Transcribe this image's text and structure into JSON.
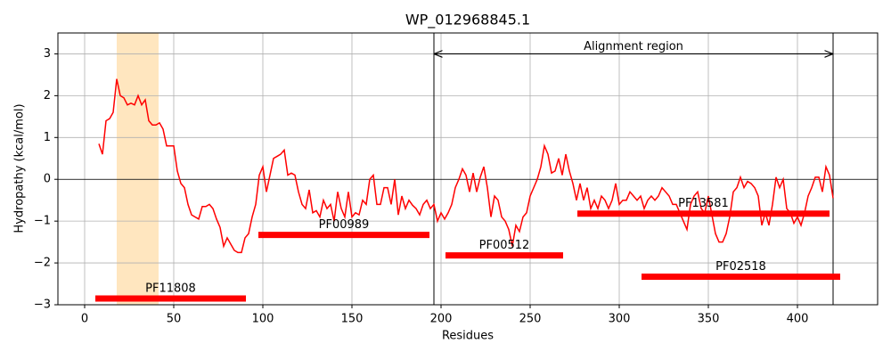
{
  "chart_data": {
    "type": "line",
    "title": "WP_012968845.1",
    "xlabel": "Residues",
    "ylabel": "Hydropathy (kcal/mol)",
    "x": [
      8,
      10,
      12,
      14,
      16,
      18,
      20,
      22,
      24,
      26,
      28,
      30,
      32,
      34,
      36,
      38,
      40,
      42,
      44,
      46,
      48,
      50,
      52,
      54,
      56,
      58,
      60,
      62,
      64,
      66,
      68,
      70,
      72,
      74,
      76,
      78,
      80,
      82,
      84,
      86,
      88,
      90,
      92,
      94,
      96,
      98,
      100,
      102,
      104,
      106,
      108,
      110,
      112,
      114,
      116,
      118,
      120,
      122,
      124,
      126,
      128,
      130,
      132,
      134,
      136,
      138,
      140,
      142,
      144,
      146,
      148,
      150,
      152,
      154,
      156,
      158,
      160,
      162,
      164,
      166,
      168,
      170,
      172,
      174,
      176,
      178,
      180,
      182,
      184,
      186,
      188,
      190,
      192,
      194,
      196,
      198,
      200,
      202,
      204,
      206,
      208,
      210,
      212,
      214,
      216,
      218,
      220,
      222,
      224,
      226,
      228,
      230,
      232,
      234,
      236,
      238,
      240,
      242,
      244,
      246,
      248,
      250,
      252,
      254,
      256,
      258,
      260,
      262,
      264,
      266,
      268,
      270,
      272,
      274,
      276,
      278,
      280,
      282,
      284,
      286,
      288,
      290,
      292,
      294,
      296,
      298,
      300,
      302,
      304,
      306,
      308,
      310,
      312,
      314,
      316,
      318,
      320,
      322,
      324,
      326,
      328,
      330,
      332,
      334,
      336,
      338,
      340,
      342,
      344,
      346,
      348,
      350,
      352,
      354,
      356,
      358,
      360,
      362,
      364,
      366,
      368,
      370,
      372,
      374,
      376,
      378,
      380,
      382,
      384,
      386,
      388,
      390,
      392,
      394,
      396,
      398,
      400,
      402,
      404,
      406,
      408,
      410,
      412,
      414,
      416,
      418,
      420
    ],
    "series": [
      {
        "color": "#ff0000",
        "values": [
          0.85,
          0.6,
          1.4,
          1.45,
          1.6,
          2.4,
          2.0,
          1.95,
          1.78,
          1.82,
          1.78,
          2.0,
          1.78,
          1.9,
          1.4,
          1.3,
          1.3,
          1.35,
          1.2,
          0.8,
          0.8,
          0.8,
          0.2,
          -0.1,
          -0.2,
          -0.6,
          -0.85,
          -0.9,
          -0.95,
          -0.65,
          -0.65,
          -0.6,
          -0.7,
          -0.95,
          -1.15,
          -1.6,
          -1.4,
          -1.55,
          -1.7,
          -1.75,
          -1.75,
          -1.4,
          -1.3,
          -0.9,
          -0.6,
          0.1,
          0.3,
          -0.3,
          0.1,
          0.5,
          0.55,
          0.6,
          0.7,
          0.1,
          0.15,
          0.1,
          -0.3,
          -0.6,
          -0.7,
          -0.25,
          -0.8,
          -0.75,
          -0.9,
          -0.5,
          -0.7,
          -0.6,
          -1.0,
          -0.3,
          -0.7,
          -0.9,
          -0.3,
          -0.9,
          -0.8,
          -0.85,
          -0.5,
          -0.6,
          0.0,
          0.1,
          -0.6,
          -0.6,
          -0.2,
          -0.2,
          -0.6,
          0.0,
          -0.85,
          -0.4,
          -0.7,
          -0.5,
          -0.62,
          -0.7,
          -0.85,
          -0.6,
          -0.5,
          -0.7,
          -0.6,
          -1.0,
          -0.8,
          -0.95,
          -0.8,
          -0.6,
          -0.2,
          0.0,
          0.25,
          0.1,
          -0.3,
          0.15,
          -0.3,
          0.05,
          0.3,
          -0.2,
          -0.9,
          -0.4,
          -0.5,
          -0.9,
          -1.0,
          -1.2,
          -1.6,
          -1.1,
          -1.25,
          -0.9,
          -0.8,
          -0.4,
          -0.2,
          0.0,
          0.3,
          0.8,
          0.6,
          0.15,
          0.2,
          0.5,
          0.1,
          0.6,
          0.2,
          -0.1,
          -0.5,
          -0.1,
          -0.5,
          -0.2,
          -0.7,
          -0.5,
          -0.7,
          -0.4,
          -0.5,
          -0.7,
          -0.5,
          -0.1,
          -0.6,
          -0.5,
          -0.5,
          -0.3,
          -0.4,
          -0.5,
          -0.4,
          -0.7,
          -0.5,
          -0.4,
          -0.5,
          -0.4,
          -0.2,
          -0.3,
          -0.4,
          -0.6,
          -0.6,
          -0.8,
          -1.0,
          -1.2,
          -0.6,
          -0.4,
          -0.3,
          -0.7,
          -0.8,
          -0.4,
          -0.85,
          -1.3,
          -1.5,
          -1.5,
          -1.3,
          -0.9,
          -0.3,
          -0.2,
          0.05,
          -0.2,
          -0.05,
          -0.1,
          -0.2,
          -0.4,
          -1.1,
          -0.8,
          -1.1,
          -0.6,
          0.05,
          -0.2,
          0.0,
          -0.7,
          -0.8,
          -1.05,
          -0.9,
          -1.1,
          -0.8,
          -0.4,
          -0.2,
          0.05,
          0.05,
          -0.3,
          0.3,
          0.1,
          -0.45
        ]
      }
    ],
    "xlim": [
      -15,
      445
    ],
    "ylim": [
      -3,
      3.5
    ],
    "xticks": [
      0,
      50,
      100,
      150,
      200,
      250,
      300,
      350,
      400
    ],
    "yticks": [
      {
        "value": -3,
        "label": "−3"
      },
      {
        "value": -2,
        "label": "−2"
      },
      {
        "value": -1,
        "label": "−1"
      },
      0,
      1,
      2,
      3
    ],
    "grid": true,
    "highlight": {
      "start": 18,
      "end": 41.5,
      "color": "#ffe6bf"
    },
    "vlines": [
      196,
      420
    ],
    "annotation": {
      "text": "Alignment region",
      "start": 196,
      "end": 420,
      "y": 3
    },
    "domain_color": "#ff0000",
    "domains": [
      {
        "name": "PF11808",
        "start": 6,
        "end": 90.5,
        "y": -2.85
      },
      {
        "name": "PF00989",
        "start": 97.5,
        "end": 193.5,
        "y": -1.33
      },
      {
        "name": "PF00512",
        "start": 202.5,
        "end": 268.5,
        "y": -1.82
      },
      {
        "name": "PF13581",
        "start": 276.5,
        "end": 418,
        "y": -0.82
      },
      {
        "name": "PF02518",
        "start": 312.5,
        "end": 424,
        "y": -2.33
      }
    ]
  }
}
